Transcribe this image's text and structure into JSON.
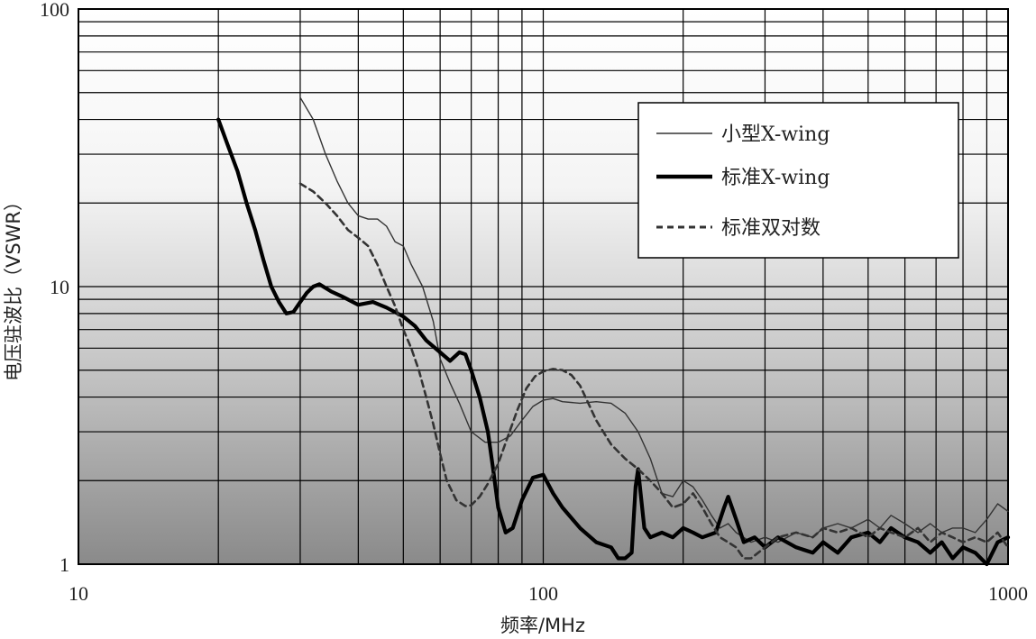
{
  "chart_data": {
    "type": "line",
    "xlabel": "频率/MHz",
    "ylabel": "电压驻波比（VSWR）",
    "xscale": "log",
    "yscale": "log",
    "xlim": [
      10,
      1000
    ],
    "ylim": [
      1,
      100
    ],
    "xticks": [
      "10",
      "100",
      "1000"
    ],
    "yticks": [
      "1",
      "10",
      "100"
    ],
    "grid": true,
    "legend_position": "top-right",
    "series": [
      {
        "name": "小型X-wing",
        "style": "thin-solid",
        "color": "#333333",
        "points": [
          [
            30,
            48
          ],
          [
            32,
            40
          ],
          [
            34,
            30
          ],
          [
            36,
            24
          ],
          [
            38,
            20
          ],
          [
            40,
            18
          ],
          [
            42,
            17.5
          ],
          [
            44,
            17.5
          ],
          [
            46,
            16.5
          ],
          [
            48,
            14.5
          ],
          [
            50,
            14
          ],
          [
            52,
            12
          ],
          [
            55,
            10
          ],
          [
            58,
            7.5
          ],
          [
            60,
            5.5
          ],
          [
            63,
            4.5
          ],
          [
            66,
            3.8
          ],
          [
            70,
            3.0
          ],
          [
            75,
            2.75
          ],
          [
            80,
            2.75
          ],
          [
            85,
            2.9
          ],
          [
            90,
            3.3
          ],
          [
            95,
            3.7
          ],
          [
            100,
            3.9
          ],
          [
            105,
            3.95
          ],
          [
            110,
            3.85
          ],
          [
            120,
            3.8
          ],
          [
            130,
            3.85
          ],
          [
            140,
            3.8
          ],
          [
            150,
            3.5
          ],
          [
            160,
            3.0
          ],
          [
            170,
            2.4
          ],
          [
            180,
            1.8
          ],
          [
            190,
            1.75
          ],
          [
            200,
            2.0
          ],
          [
            210,
            1.9
          ],
          [
            220,
            1.7
          ],
          [
            230,
            1.5
          ],
          [
            240,
            1.35
          ],
          [
            250,
            1.4
          ],
          [
            260,
            1.3
          ],
          [
            280,
            1.2
          ],
          [
            300,
            1.25
          ],
          [
            320,
            1.2
          ],
          [
            350,
            1.3
          ],
          [
            380,
            1.25
          ],
          [
            400,
            1.35
          ],
          [
            430,
            1.4
          ],
          [
            460,
            1.35
          ],
          [
            500,
            1.45
          ],
          [
            530,
            1.35
          ],
          [
            560,
            1.5
          ],
          [
            600,
            1.4
          ],
          [
            640,
            1.3
          ],
          [
            680,
            1.4
          ],
          [
            720,
            1.3
          ],
          [
            760,
            1.35
          ],
          [
            800,
            1.35
          ],
          [
            850,
            1.3
          ],
          [
            900,
            1.45
          ],
          [
            950,
            1.65
          ],
          [
            1000,
            1.55
          ]
        ]
      },
      {
        "name": "标准X-wing",
        "style": "thick-solid",
        "color": "#000000",
        "points": [
          [
            20,
            40
          ],
          [
            21,
            32
          ],
          [
            22,
            26
          ],
          [
            23,
            20
          ],
          [
            24,
            16
          ],
          [
            25,
            12.5
          ],
          [
            26,
            10
          ],
          [
            27,
            8.8
          ],
          [
            28,
            8.0
          ],
          [
            29,
            8.1
          ],
          [
            30,
            8.8
          ],
          [
            31,
            9.5
          ],
          [
            32,
            10
          ],
          [
            33,
            10.2
          ],
          [
            35,
            9.6
          ],
          [
            37,
            9.2
          ],
          [
            40,
            8.6
          ],
          [
            43,
            8.8
          ],
          [
            46,
            8.4
          ],
          [
            50,
            7.8
          ],
          [
            53,
            7.2
          ],
          [
            56,
            6.4
          ],
          [
            60,
            5.8
          ],
          [
            63,
            5.4
          ],
          [
            66,
            5.8
          ],
          [
            68,
            5.7
          ],
          [
            70,
            5.0
          ],
          [
            73,
            4.0
          ],
          [
            76,
            3.0
          ],
          [
            78,
            2.2
          ],
          [
            80,
            1.6
          ],
          [
            83,
            1.3
          ],
          [
            86,
            1.35
          ],
          [
            90,
            1.7
          ],
          [
            95,
            2.05
          ],
          [
            100,
            2.1
          ],
          [
            105,
            1.8
          ],
          [
            110,
            1.6
          ],
          [
            120,
            1.35
          ],
          [
            130,
            1.2
          ],
          [
            140,
            1.15
          ],
          [
            145,
            1.05
          ],
          [
            150,
            1.05
          ],
          [
            155,
            1.1
          ],
          [
            158,
            1.9
          ],
          [
            160,
            2.2
          ],
          [
            162,
            1.8
          ],
          [
            165,
            1.35
          ],
          [
            170,
            1.25
          ],
          [
            180,
            1.3
          ],
          [
            190,
            1.25
          ],
          [
            200,
            1.35
          ],
          [
            210,
            1.3
          ],
          [
            220,
            1.25
          ],
          [
            235,
            1.3
          ],
          [
            245,
            1.6
          ],
          [
            250,
            1.75
          ],
          [
            260,
            1.45
          ],
          [
            270,
            1.2
          ],
          [
            285,
            1.25
          ],
          [
            300,
            1.15
          ],
          [
            320,
            1.25
          ],
          [
            350,
            1.15
          ],
          [
            380,
            1.1
          ],
          [
            400,
            1.2
          ],
          [
            430,
            1.1
          ],
          [
            460,
            1.25
          ],
          [
            500,
            1.3
          ],
          [
            530,
            1.2
          ],
          [
            560,
            1.35
          ],
          [
            600,
            1.25
          ],
          [
            640,
            1.2
          ],
          [
            680,
            1.1
          ],
          [
            720,
            1.2
          ],
          [
            760,
            1.05
          ],
          [
            800,
            1.15
          ],
          [
            850,
            1.1
          ],
          [
            900,
            1.0
          ],
          [
            950,
            1.2
          ],
          [
            1000,
            1.25
          ]
        ]
      },
      {
        "name": "标准双对数",
        "style": "dashed",
        "color": "#333333",
        "points": [
          [
            30,
            23.5
          ],
          [
            32,
            22
          ],
          [
            34,
            20
          ],
          [
            36,
            18
          ],
          [
            38,
            16
          ],
          [
            40,
            15
          ],
          [
            42,
            14
          ],
          [
            44,
            12
          ],
          [
            46,
            10
          ],
          [
            48,
            8.5
          ],
          [
            50,
            7.0
          ],
          [
            52,
            6.0
          ],
          [
            54,
            5.0
          ],
          [
            56,
            4.0
          ],
          [
            58,
            3.2
          ],
          [
            60,
            2.5
          ],
          [
            62,
            2.0
          ],
          [
            65,
            1.7
          ],
          [
            68,
            1.62
          ],
          [
            70,
            1.63
          ],
          [
            73,
            1.75
          ],
          [
            76,
            1.95
          ],
          [
            80,
            2.3
          ],
          [
            84,
            2.9
          ],
          [
            88,
            3.6
          ],
          [
            92,
            4.3
          ],
          [
            96,
            4.75
          ],
          [
            100,
            4.95
          ],
          [
            105,
            5.05
          ],
          [
            110,
            5.0
          ],
          [
            115,
            4.8
          ],
          [
            120,
            4.4
          ],
          [
            125,
            3.8
          ],
          [
            130,
            3.3
          ],
          [
            140,
            2.7
          ],
          [
            150,
            2.4
          ],
          [
            160,
            2.2
          ],
          [
            170,
            2.0
          ],
          [
            180,
            1.8
          ],
          [
            190,
            1.6
          ],
          [
            200,
            1.65
          ],
          [
            210,
            1.8
          ],
          [
            220,
            1.6
          ],
          [
            230,
            1.4
          ],
          [
            240,
            1.25
          ],
          [
            250,
            1.2
          ],
          [
            260,
            1.15
          ],
          [
            270,
            1.05
          ],
          [
            280,
            1.05
          ],
          [
            300,
            1.15
          ],
          [
            320,
            1.25
          ],
          [
            350,
            1.3
          ],
          [
            380,
            1.25
          ],
          [
            400,
            1.35
          ],
          [
            430,
            1.3
          ],
          [
            460,
            1.35
          ],
          [
            500,
            1.25
          ],
          [
            530,
            1.35
          ],
          [
            560,
            1.3
          ],
          [
            600,
            1.25
          ],
          [
            640,
            1.35
          ],
          [
            680,
            1.2
          ],
          [
            720,
            1.3
          ],
          [
            760,
            1.25
          ],
          [
            800,
            1.2
          ],
          [
            850,
            1.25
          ],
          [
            900,
            1.2
          ],
          [
            950,
            1.3
          ],
          [
            1000,
            1.15
          ]
        ]
      }
    ]
  }
}
